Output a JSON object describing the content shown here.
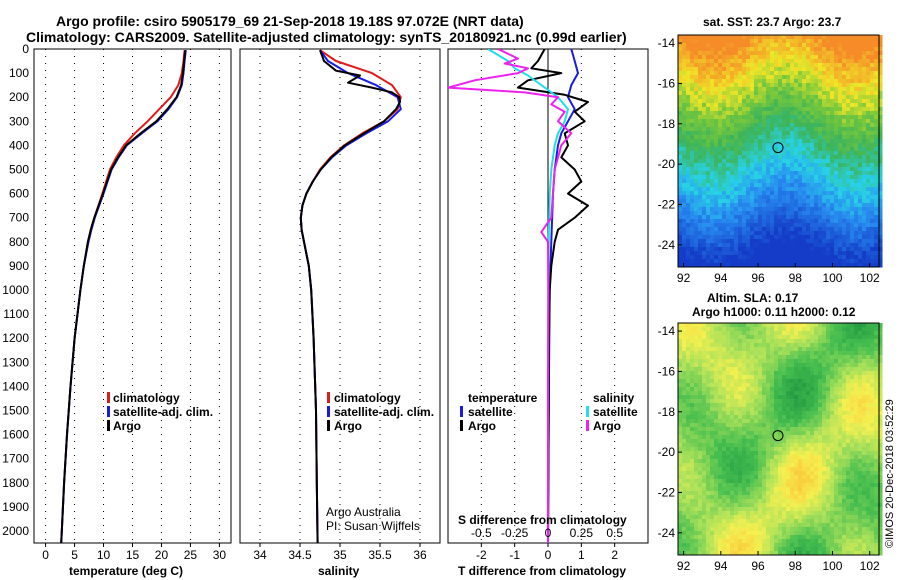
{
  "title": {
    "line1": "Argo profile: csiro 5905179_69 21-Sep-2018 19.18S 97.072E (NRT data)",
    "line2": "Climatology: CARS2009. Satellite-adjusted climatology: synTS_20180921.nc (0.99d earlier)"
  },
  "depth_ticks": [
    0,
    100,
    200,
    300,
    400,
    500,
    600,
    700,
    800,
    900,
    1000,
    1100,
    1200,
    1300,
    1400,
    1500,
    1600,
    1700,
    1800,
    1900,
    2000
  ],
  "colors": {
    "climatology": "#e11a1a",
    "satellite": "#1a1ae6",
    "argo": "#000000",
    "salinity_sat": "#22ddee",
    "salinity_argo": "#ee22ee"
  },
  "chart_data": [
    {
      "type": "line",
      "panel": "temperature",
      "xlabel": "temperature (deg C)",
      "ylabel": "depth",
      "xlim": [
        -2,
        32
      ],
      "ylim": [
        2050,
        0
      ],
      "xticks": [
        0,
        5,
        10,
        15,
        20,
        25,
        30
      ],
      "legend": [
        "climatology",
        "satellite-adj. clim.",
        "Argo"
      ],
      "series": [
        {
          "name": "climatology",
          "depth": [
            5,
            50,
            100,
            150,
            200,
            250,
            300,
            350,
            400,
            450,
            500,
            600,
            700,
            750,
            800,
            900,
            1000,
            1100,
            1200,
            1400,
            1600,
            1800,
            2000,
            2050
          ],
          "values": [
            24.0,
            23.8,
            23.5,
            22.9,
            21.6,
            19.6,
            17.6,
            15.4,
            13.5,
            12.2,
            11.1,
            9.8,
            8.4,
            7.8,
            7.3,
            6.6,
            6.0,
            5.5,
            5.0,
            4.3,
            3.7,
            3.2,
            2.8,
            2.7
          ]
        },
        {
          "name": "satellite-adj. clim.",
          "depth": [
            5,
            50,
            100,
            150,
            200,
            250,
            300,
            350,
            400,
            450,
            500,
            600,
            700,
            750,
            800,
            900,
            1000,
            1100,
            1200,
            1400,
            1600,
            1800,
            2000,
            2050
          ],
          "values": [
            24.2,
            24.0,
            23.8,
            23.5,
            22.7,
            21.2,
            19.3,
            16.6,
            14.0,
            12.6,
            11.4,
            10.0,
            8.5,
            7.9,
            7.4,
            6.6,
            6.0,
            5.5,
            5.0,
            4.3,
            3.7,
            3.2,
            2.8,
            2.7
          ]
        },
        {
          "name": "Argo",
          "depth": [
            5,
            50,
            100,
            150,
            200,
            250,
            300,
            350,
            400,
            450,
            500,
            600,
            700,
            750,
            800,
            900,
            1000,
            1100,
            1200,
            1400,
            1600,
            1800,
            2000,
            2050
          ],
          "values": [
            24.1,
            23.9,
            23.7,
            23.4,
            22.6,
            21.0,
            19.1,
            16.4,
            13.9,
            12.5,
            11.3,
            9.9,
            8.4,
            7.8,
            7.3,
            6.6,
            6.0,
            5.5,
            5.0,
            4.3,
            3.7,
            3.2,
            2.8,
            2.7
          ]
        }
      ]
    },
    {
      "type": "line",
      "panel": "salinity",
      "xlabel": "salinity",
      "xlim": [
        33.75,
        36.25
      ],
      "ylim": [
        2050,
        0
      ],
      "xticks": [
        34,
        34.5,
        35,
        35.5,
        36
      ],
      "legend": [
        "climatology",
        "satellite-adj. clim.",
        "Argo"
      ],
      "series": [
        {
          "name": "climatology",
          "depth": [
            5,
            50,
            100,
            150,
            200,
            250,
            300,
            350,
            400,
            450,
            500,
            550,
            600,
            650,
            700,
            750,
            800,
            900,
            1000,
            1200,
            1500,
            1800,
            2050
          ],
          "values": [
            34.75,
            34.95,
            35.4,
            35.65,
            35.76,
            35.72,
            35.55,
            35.28,
            35.05,
            34.88,
            34.75,
            34.66,
            34.58,
            34.53,
            34.51,
            34.52,
            34.55,
            34.61,
            34.64,
            34.67,
            34.7,
            34.71,
            34.72
          ]
        },
        {
          "name": "satellite-adj. clim.",
          "depth": [
            5,
            50,
            100,
            150,
            200,
            250,
            300,
            350,
            400,
            450,
            500,
            550,
            600,
            650,
            700,
            750,
            800,
            900,
            1000,
            1200,
            1500,
            1800,
            2050
          ],
          "values": [
            34.75,
            34.85,
            35.1,
            35.45,
            35.72,
            35.76,
            35.6,
            35.33,
            35.08,
            34.9,
            34.76,
            34.66,
            34.58,
            34.53,
            34.51,
            34.52,
            34.55,
            34.61,
            34.64,
            34.67,
            34.7,
            34.71,
            34.72
          ]
        },
        {
          "name": "Argo",
          "depth": [
            5,
            50,
            90,
            110,
            140,
            160,
            180,
            200,
            220,
            250,
            300,
            350,
            400,
            450,
            500,
            550,
            600,
            650,
            700,
            750,
            800,
            900,
            1000,
            1200,
            1500,
            1800,
            2050
          ],
          "values": [
            34.75,
            34.8,
            34.95,
            35.25,
            35.1,
            35.4,
            35.65,
            35.74,
            35.75,
            35.7,
            35.55,
            35.3,
            35.06,
            34.89,
            34.76,
            34.66,
            34.58,
            34.53,
            34.51,
            34.52,
            34.55,
            34.61,
            34.64,
            34.67,
            34.7,
            34.71,
            34.72
          ]
        }
      ],
      "annotation": [
        "Argo Australia",
        "PI: Susan Wijffels"
      ]
    },
    {
      "type": "line",
      "panel": "difference",
      "xlabel": "T difference from climatology",
      "xlabel2": "S difference from climatology",
      "xlim": [
        -3,
        3
      ],
      "ylim": [
        2050,
        0
      ],
      "xticks": [
        -2,
        -1,
        0,
        1,
        2
      ],
      "xticks_top_labels": [
        "-0.5",
        "-0.25",
        "0",
        "0.25",
        "0.5"
      ],
      "legend_left": [
        "temperature",
        "satellite",
        "Argo"
      ],
      "legend_right": [
        "salinity",
        "satellite",
        "Argo"
      ],
      "series": [
        {
          "name": "T satellite",
          "depth": [
            0,
            50,
            100,
            150,
            200,
            250,
            300,
            350,
            400,
            500,
            600,
            800,
            1000,
            1500,
            2050
          ],
          "values": [
            0.7,
            0.8,
            0.9,
            0.7,
            0.6,
            0.8,
            0.6,
            0.4,
            0.3,
            0.2,
            0.15,
            0.1,
            0.05,
            0.02,
            0.0
          ]
        },
        {
          "name": "T Argo",
          "depth": [
            0,
            50,
            80,
            100,
            130,
            160,
            190,
            220,
            260,
            300,
            350,
            400,
            450,
            500,
            550,
            600,
            650,
            700,
            750,
            800,
            900,
            1000,
            1200,
            1500,
            2050
          ],
          "values": [
            -0.1,
            -0.3,
            -0.5,
            0.4,
            -0.6,
            -0.9,
            0.5,
            1.2,
            0.8,
            1.1,
            0.5,
            0.6,
            0.4,
            0.8,
            1.0,
            0.6,
            1.2,
            0.8,
            0.3,
            0.2,
            0.1,
            0.05,
            0.03,
            0.02,
            0.0
          ]
        },
        {
          "name": "S satellite",
          "depth": [
            0,
            50,
            80,
            110,
            150,
            200,
            250,
            300,
            350,
            400,
            500,
            600,
            800,
            1000,
            1500,
            2050
          ],
          "values": [
            -1.8,
            -1.2,
            -1.0,
            -0.6,
            -0.2,
            0.3,
            0.6,
            0.5,
            0.3,
            0.2,
            0.1,
            0.05,
            0.02,
            0.01,
            0.0,
            0.0
          ]
        },
        {
          "name": "S Argo",
          "depth": [
            0,
            40,
            60,
            80,
            100,
            130,
            160,
            180,
            200,
            230,
            260,
            300,
            350,
            400,
            500,
            700,
            760,
            800,
            1000,
            1500,
            2050
          ],
          "values": [
            -1.5,
            -0.9,
            -1.3,
            -0.6,
            -0.9,
            -2.2,
            -3.0,
            -0.7,
            0.3,
            0.1,
            0.5,
            0.3,
            0.7,
            0.4,
            0.2,
            0.1,
            -0.2,
            0.0,
            0.01,
            0.0,
            0.0
          ]
        }
      ]
    },
    {
      "type": "heatmap",
      "panel": "sst_map",
      "title": "sat. SST: 23.7 Argo: 23.7",
      "x_ticks": [
        92,
        94,
        96,
        98,
        100,
        102
      ],
      "y_ticks": [
        -14,
        -16,
        -18,
        -20,
        -22,
        -24
      ],
      "xlim": [
        91.7,
        102.5
      ],
      "ylim": [
        -25.1,
        -13.6
      ],
      "marker": {
        "lon": 97.072,
        "lat": -19.18
      }
    },
    {
      "type": "heatmap",
      "panel": "sla_map",
      "title_line1": "Altim. SLA: 0.17",
      "title_line2": "Argo h1000: 0.11 h2000: 0.12",
      "x_ticks": [
        92,
        94,
        96,
        98,
        100,
        102
      ],
      "y_ticks": [
        -14,
        -16,
        -18,
        -20,
        -22,
        -24
      ],
      "xlim": [
        91.7,
        102.5
      ],
      "ylim": [
        -25.1,
        -13.6
      ],
      "marker": {
        "lon": 97.072,
        "lat": -19.18
      }
    }
  ],
  "side_stamp": "©IMOS 20-Dec-2018 03:52:29"
}
